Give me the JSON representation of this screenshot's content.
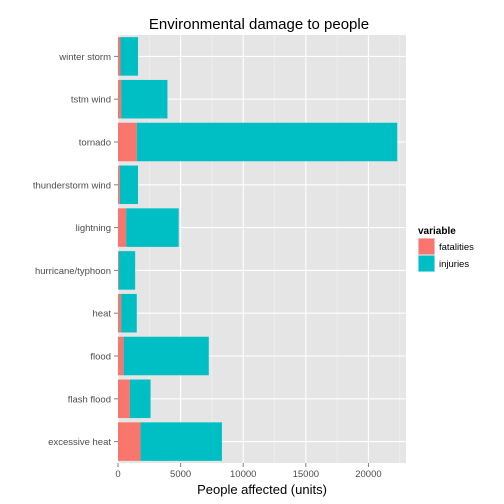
{
  "chart_data": {
    "type": "bar",
    "orientation": "horizontal",
    "stacked": true,
    "title": "Environmental damage to people",
    "xlabel": "People affected (units)",
    "ylabel": "",
    "xlim": [
      0,
      23000
    ],
    "xticks": [
      0,
      5000,
      10000,
      15000,
      20000
    ],
    "grid": true,
    "legend_title": "variable",
    "legend_position": "right",
    "categories": [
      "winter storm",
      "tstm wind",
      "tornado",
      "thunderstorm wind",
      "lightning",
      "hurricane/typhoon",
      "heat",
      "flood",
      "flash flood",
      "excessive heat"
    ],
    "series": [
      {
        "name": "fatalities",
        "color": "#F8766D",
        "values": [
          200,
          250,
          1500,
          150,
          650,
          70,
          250,
          450,
          950,
          1800
        ]
      },
      {
        "name": "injuries",
        "color": "#00BFC4",
        "values": [
          1400,
          3700,
          20800,
          1450,
          4200,
          1300,
          1250,
          6800,
          1650,
          6500
        ]
      }
    ]
  }
}
